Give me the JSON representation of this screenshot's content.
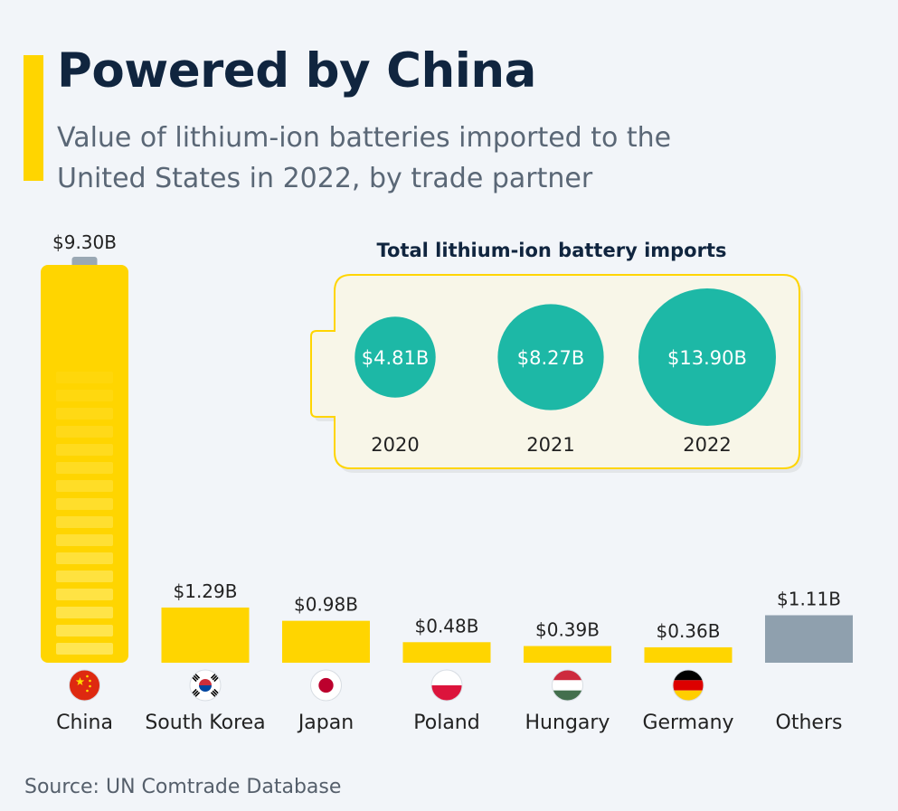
{
  "header": {
    "title": "Powered by China",
    "subtitle": "Value of lithium-ion batteries imported to the United States in 2022, by trade partner"
  },
  "chart_data": [
    {
      "type": "bar",
      "title": "Value of lithium-ion batteries imported to the United States in 2022, by trade partner",
      "categories": [
        "China",
        "South Korea",
        "Japan",
        "Poland",
        "Hungary",
        "Germany",
        "Others"
      ],
      "values": [
        9.3,
        1.29,
        0.98,
        0.48,
        0.39,
        0.36,
        1.11
      ],
      "labels": [
        "$9.30B",
        "$1.29B",
        "$0.98B",
        "$0.48B",
        "$0.39B",
        "$0.36B",
        "$1.11B"
      ],
      "unit": "USD billions",
      "ylim": [
        0,
        9.3
      ],
      "colors": [
        "#ffd500",
        "#ffd500",
        "#ffd500",
        "#ffd500",
        "#ffd500",
        "#ffd500",
        "#8fa0ae"
      ],
      "icons": [
        "flag-china-icon",
        "flag-south-korea-icon",
        "flag-japan-icon",
        "flag-poland-icon",
        "flag-hungary-icon",
        "flag-germany-icon",
        ""
      ]
    },
    {
      "type": "bubble",
      "title": "Total lithium-ion battery imports",
      "categories": [
        "2020",
        "2021",
        "2022"
      ],
      "values": [
        4.81,
        8.27,
        13.9
      ],
      "labels": [
        "$4.81B",
        "$8.27B",
        "$13.90B"
      ],
      "unit": "USD billions",
      "color": "#1db8a6"
    }
  ],
  "footer": {
    "source": "Source: UN Comtrade Database"
  },
  "colors": {
    "bar": "#ffd500",
    "others": "#8fa0ae",
    "bubble": "#1db8a6",
    "title": "#10253f",
    "text": "#222222",
    "inset_bg": "#f8f6e8",
    "inset_border": "#ffd500"
  }
}
